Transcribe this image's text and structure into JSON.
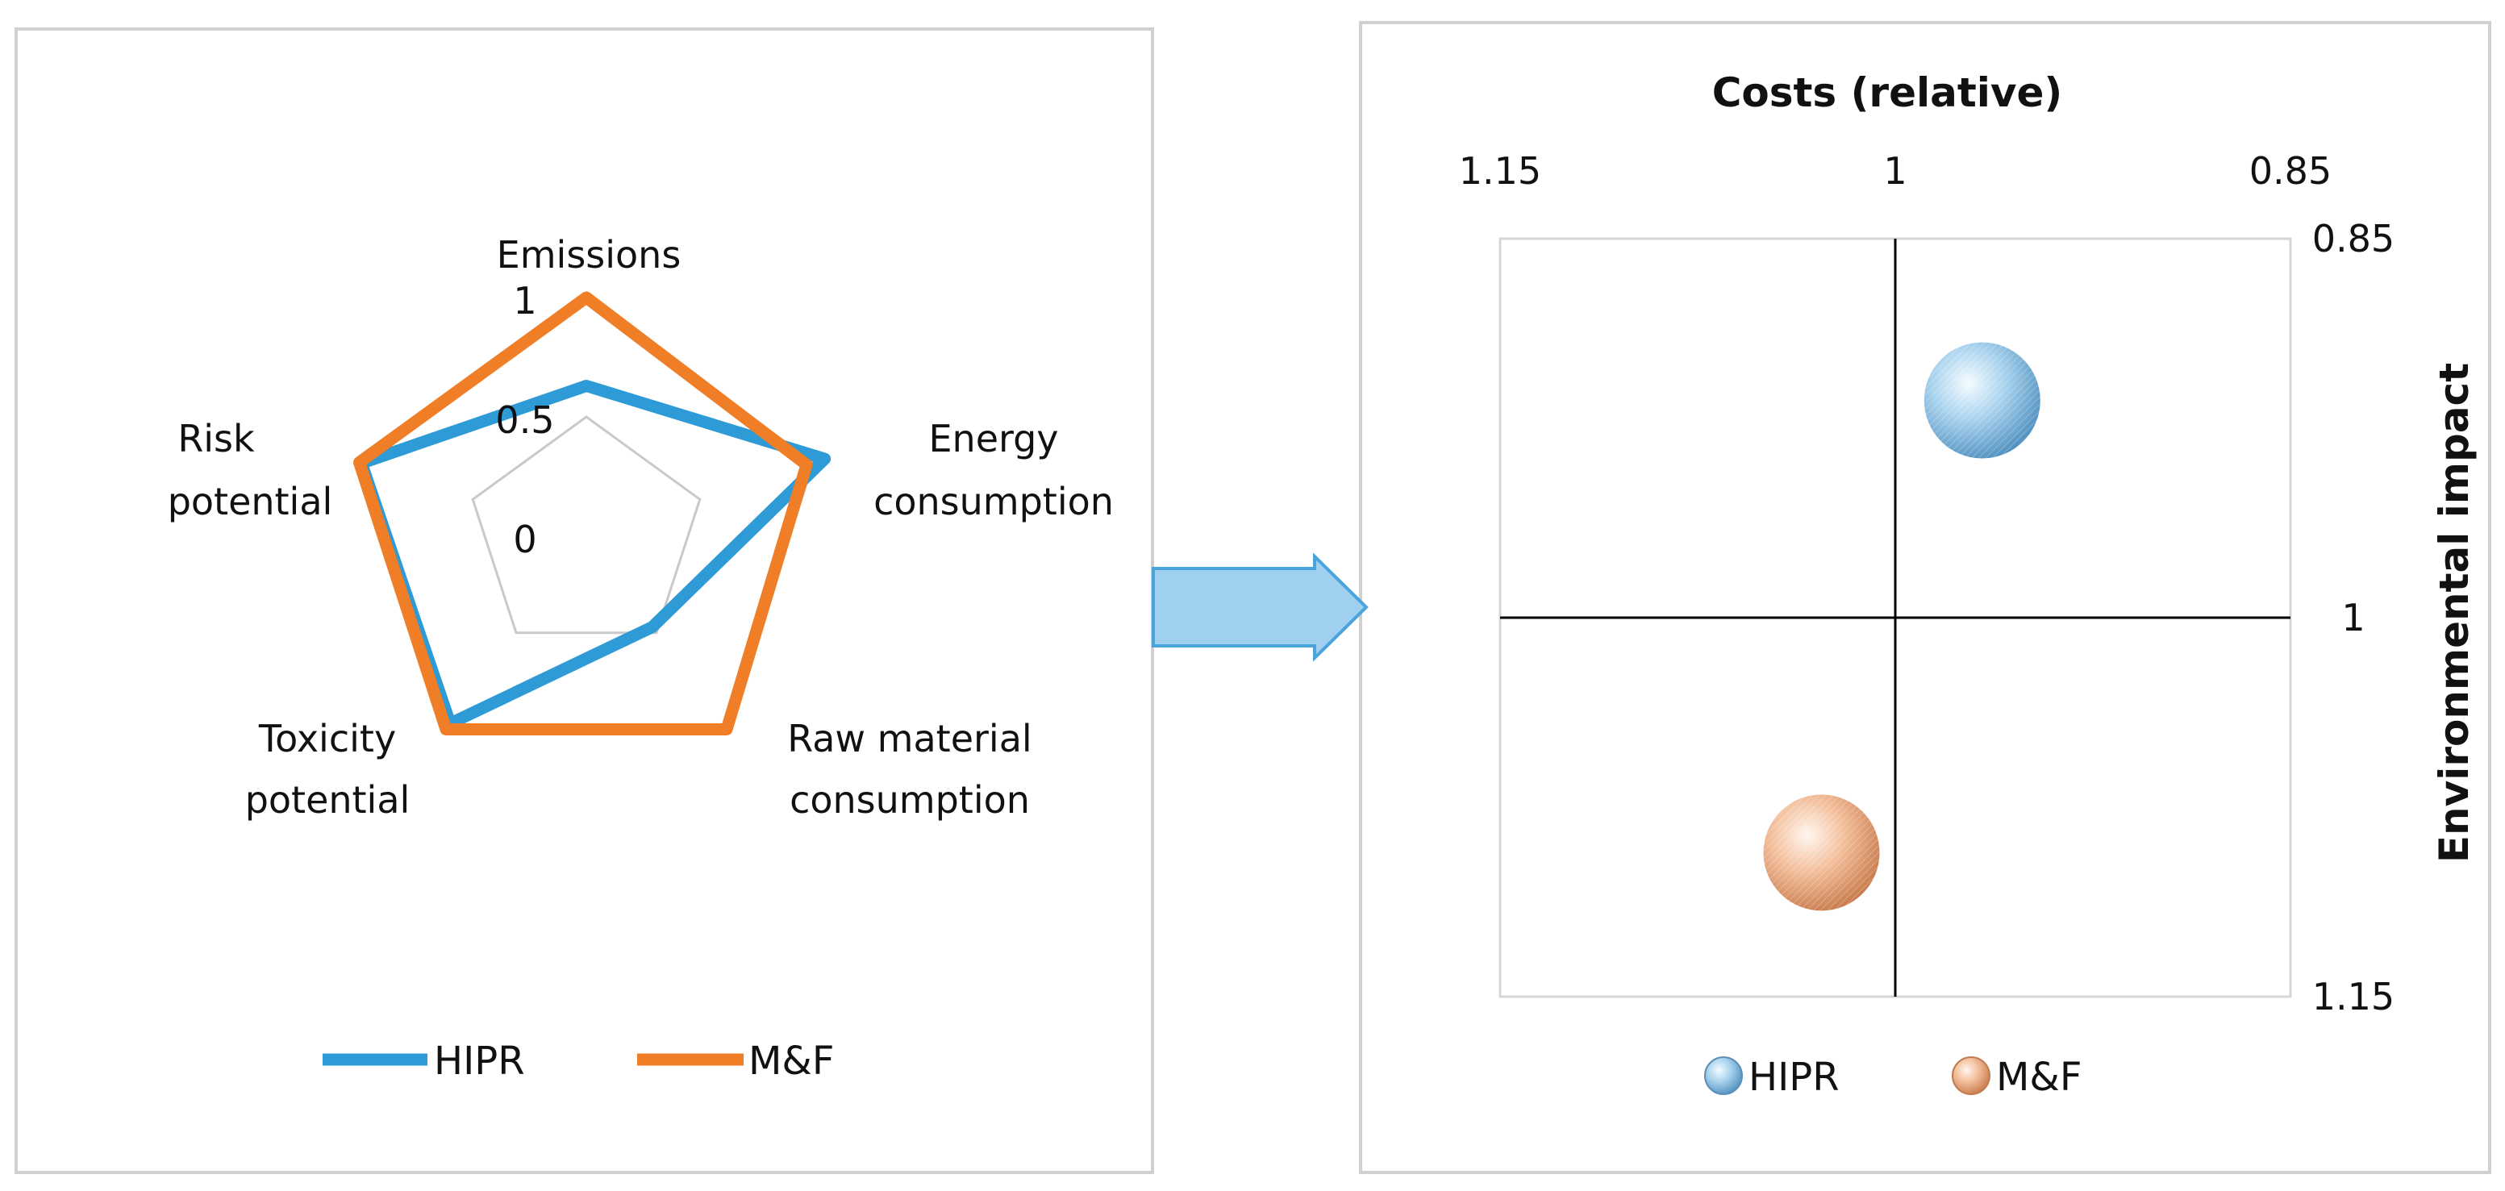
{
  "colors": {
    "hipr": "#2E9BD6",
    "mf": "#F07E26",
    "grid": "#c9c9c9",
    "panel_border": "#d0d0d0",
    "arrow_fill": "#9FD0F0",
    "arrow_stroke": "#4AA3DA"
  },
  "chart_data": [
    {
      "type": "radar",
      "axes": [
        "Emissions",
        "Energy consumption",
        "Raw material consumption",
        "Toxicity potential",
        "Risk potential"
      ],
      "axis_label_lines": [
        [
          "Emissions"
        ],
        [
          "Energy",
          "consumption"
        ],
        [
          "Raw material",
          "consumption"
        ],
        [
          "Toxicity",
          "potential"
        ],
        [
          "Risk",
          "potential"
        ]
      ],
      "radial_ticks": [
        {
          "value": 0,
          "label": "0"
        },
        {
          "value": 0.5,
          "label": "0.5"
        },
        {
          "value": 1,
          "label": "1"
        }
      ],
      "rlim": [
        0,
        1
      ],
      "series": [
        {
          "name": "HIPR",
          "values": [
            0.63,
            1.05,
            0.47,
            0.97,
            0.99
          ],
          "color": "#2E9BD6"
        },
        {
          "name": "M&F",
          "values": [
            1.0,
            0.97,
            1.0,
            1.0,
            1.0
          ],
          "color": "#F07E26"
        }
      ],
      "legend": {
        "position": "bottom",
        "entries": [
          "HIPR",
          "M&F"
        ]
      }
    },
    {
      "type": "bubble",
      "xlabel": "Costs (relative)",
      "ylabel": "Environmental impact",
      "xlim": [
        1.15,
        0.85
      ],
      "ylim": [
        0.85,
        1.15
      ],
      "x_ticks": [
        "1.15",
        "1",
        "0.85"
      ],
      "y_ticks": [
        "0.85",
        "1",
        "1.15"
      ],
      "x_axis_position": "top",
      "y_axis_position": "right",
      "points": [
        {
          "name": "HIPR",
          "x": 0.967,
          "y": 0.914,
          "color": "#8EC3E4"
        },
        {
          "name": "M&F",
          "x": 1.028,
          "y": 1.093,
          "color": "#F2B48A"
        }
      ],
      "legend": {
        "position": "bottom",
        "entries": [
          "HIPR",
          "M&F"
        ]
      }
    }
  ]
}
